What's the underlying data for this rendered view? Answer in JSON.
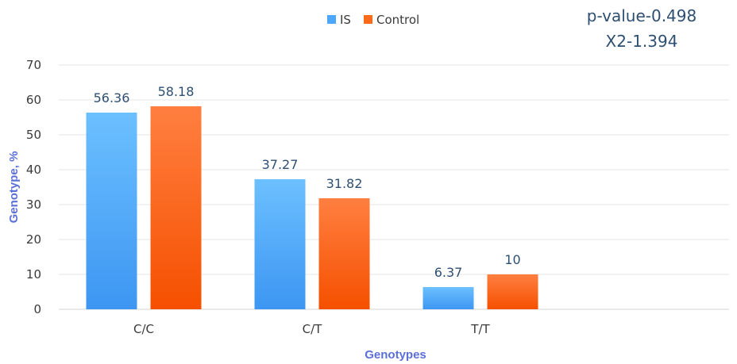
{
  "chart_data": {
    "type": "bar",
    "categories": [
      "C/C",
      "C/T",
      "T/T"
    ],
    "series": [
      {
        "name": "IS",
        "values": [
          56.36,
          37.27,
          6.37
        ],
        "labels": [
          "56.36",
          "37.27",
          "6.37"
        ],
        "color": "#4da6ff"
      },
      {
        "name": "Control",
        "values": [
          58.18,
          31.82,
          10
        ],
        "labels": [
          "58.18",
          "31.82",
          "10"
        ],
        "color": "#ff6a1a"
      }
    ],
    "xlabel": "Genotypes",
    "ylabel": "Genotype, %",
    "ylim": [
      0,
      70
    ],
    "yticks": [
      0,
      10,
      20,
      30,
      40,
      50,
      60,
      70
    ],
    "grid": true,
    "legend_position": "top-center",
    "annotations": [
      "p-value-0.498",
      "X2-1.394"
    ],
    "axis_title_color": "#5b6fd6"
  }
}
